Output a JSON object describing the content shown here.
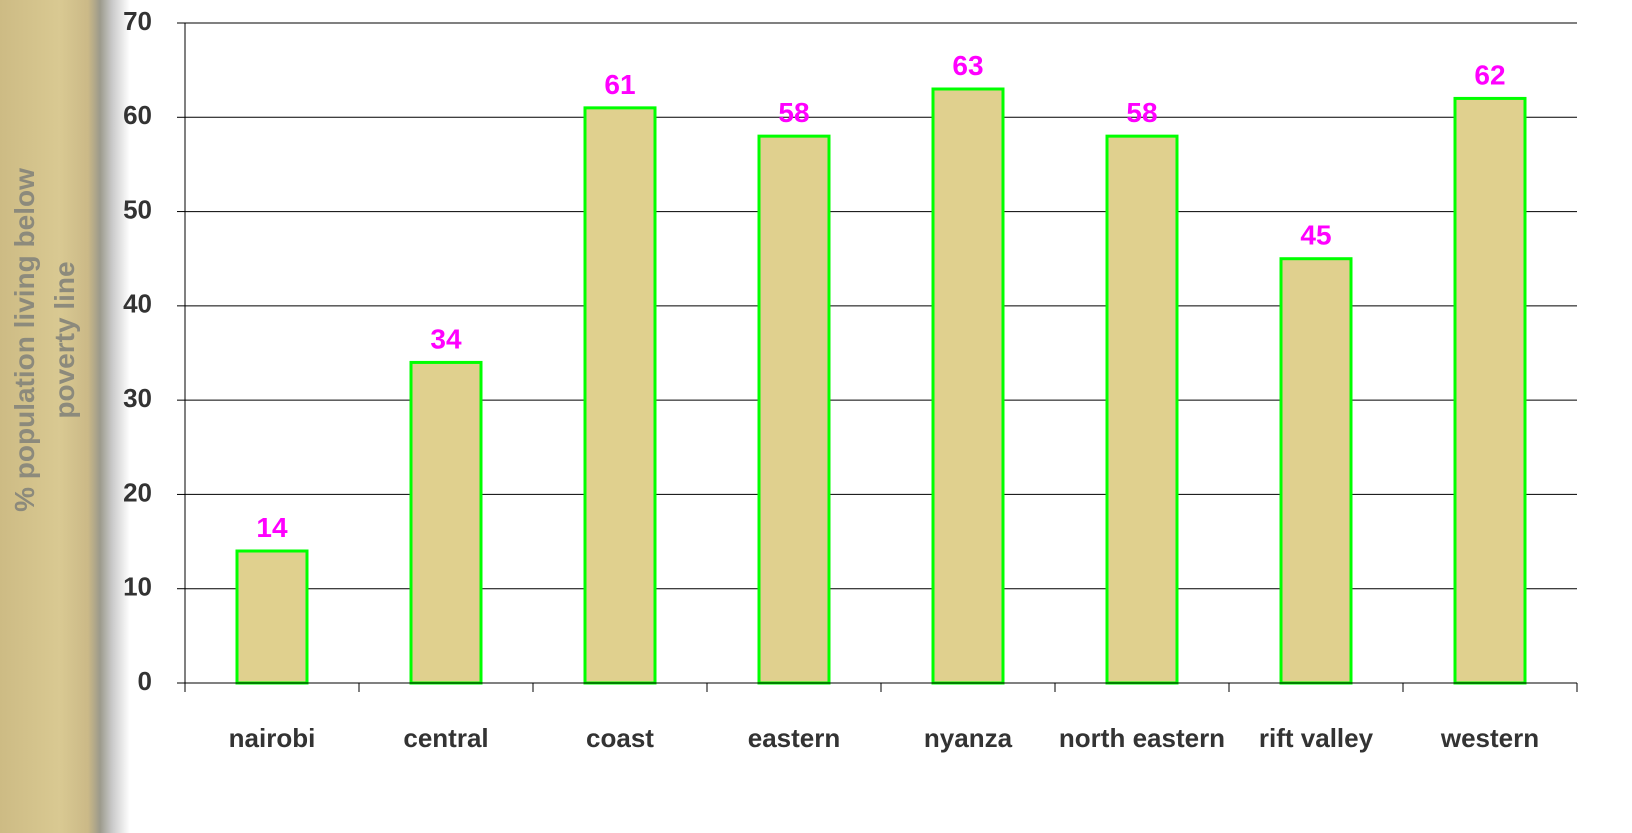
{
  "chart_data": {
    "type": "bar",
    "y_axis_label": "% population living below poverty line",
    "categories": [
      "nairobi",
      "central",
      "coast",
      "eastern",
      "nyanza",
      "north eastern",
      "rift valley",
      "western"
    ],
    "values": [
      14,
      34,
      61,
      58,
      63,
      58,
      45,
      62
    ],
    "color": "#e0d08e",
    "edge_color": "#00ff00",
    "label_color": "#ff00ff",
    "ylim": [
      0,
      70
    ],
    "yticks": [
      0,
      10,
      20,
      30,
      40,
      50,
      60,
      70
    ],
    "grid": true
  }
}
